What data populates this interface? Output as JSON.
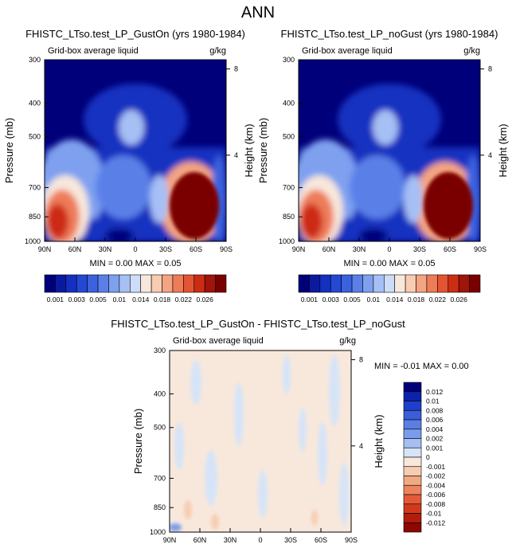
{
  "page": {
    "title": "ANN"
  },
  "scale_colors": {
    "main": [
      "#00007a",
      "#0a1aa0",
      "#1530c0",
      "#2448d4",
      "#3a62df",
      "#5a80e8",
      "#7ea0ef",
      "#a6c0f5",
      "#cddcf8",
      "#f8e8dc",
      "#f7ccb0",
      "#f4a482",
      "#ee7c58",
      "#e55432",
      "#cd2c14",
      "#a0140a",
      "#7a0000"
    ],
    "diff": [
      "#00007a",
      "#0c22aa",
      "#1f40cc",
      "#3a5ed8",
      "#5a7ee2",
      "#7a9cea",
      "#a6bff2",
      "#d6e4f8",
      "#f8e8dc",
      "#f7cdb0",
      "#f3a884",
      "#ed845e",
      "#e45a38",
      "#d2381e",
      "#b21c0c",
      "#8c0800"
    ]
  },
  "chart_data": [
    {
      "id": "gust_on",
      "type": "heatmap",
      "title": "FHISTC_LTso.test_LP_GustOn (yrs 1980-1984)",
      "subtitle_left": "Grid-box average liquid",
      "subtitle_right": "g/kg",
      "xlabel": "",
      "ylabel": "Pressure (mb)",
      "ylabel_right": "Height (km)",
      "x_ticks": [
        "90N",
        "60N",
        "30N",
        "0",
        "30S",
        "60S",
        "90S"
      ],
      "y_ticks": [
        "300",
        "400",
        "500",
        "700",
        "850",
        "1000"
      ],
      "y_right_ticks": [
        "8",
        "4"
      ],
      "stats": "MIN =  0.00  MAX =  0.05",
      "colorbar_labels": [
        "0.001",
        "0.003",
        "0.005",
        "0.01",
        "0.014",
        "0.018",
        "0.022",
        "0.026"
      ],
      "colorbar_orientation": "horizontal"
    },
    {
      "id": "no_gust",
      "type": "heatmap",
      "title": "FHISTC_LTso.test_LP_noGust (yrs 1980-1984)",
      "subtitle_left": "Grid-box average liquid",
      "subtitle_right": "g/kg",
      "xlabel": "",
      "ylabel": "Pressure (mb)",
      "ylabel_right": "Height (km)",
      "x_ticks": [
        "90N",
        "60N",
        "30N",
        "0",
        "30S",
        "60S",
        "90S"
      ],
      "y_ticks": [
        "300",
        "400",
        "500",
        "700",
        "850",
        "1000"
      ],
      "y_right_ticks": [
        "8",
        "4"
      ],
      "stats": "MIN =  0.00  MAX =  0.05",
      "colorbar_labels": [
        "0.001",
        "0.003",
        "0.005",
        "0.01",
        "0.014",
        "0.018",
        "0.022",
        "0.026"
      ],
      "colorbar_orientation": "horizontal"
    },
    {
      "id": "diff",
      "type": "heatmap",
      "title": "FHISTC_LTso.test_LP_GustOn - FHISTC_LTso.test_LP_noGust",
      "subtitle_left": "Grid-box average liquid",
      "subtitle_right": "g/kg",
      "xlabel": "",
      "ylabel": "Pressure (mb)",
      "ylabel_right": "Height (km)",
      "x_ticks": [
        "90N",
        "60N",
        "30N",
        "0",
        "30S",
        "60S",
        "90S"
      ],
      "y_ticks": [
        "300",
        "400",
        "500",
        "700",
        "850",
        "1000"
      ],
      "y_right_ticks": [
        "8",
        "4"
      ],
      "stats": "MIN = -0.01  MAX =  0.00",
      "colorbar_labels": [
        "0.012",
        "0.01",
        "0.008",
        "0.006",
        "0.004",
        "0.002",
        "0.001",
        "0",
        "-0.001",
        "-0.002",
        "-0.004",
        "-0.006",
        "-0.008",
        "-0.01",
        "-0.012"
      ],
      "colorbar_orientation": "vertical"
    }
  ]
}
